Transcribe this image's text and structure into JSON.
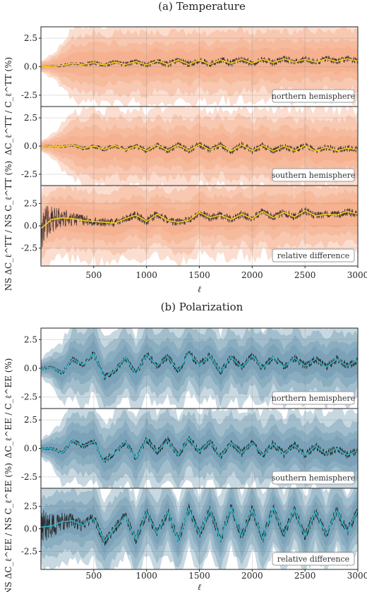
{
  "chart_data": [
    {
      "type": "line",
      "title": "(a) Temperature",
      "xlabel": "ℓ",
      "xlim": [
        0,
        3000
      ],
      "xticks": [
        "500",
        "1000",
        "1500",
        "2000",
        "2500",
        "3000"
      ],
      "colors": {
        "band": "#f4a079",
        "data": "#3a3030",
        "smooth": "#f2d21a"
      },
      "panels": [
        {
          "ylabel": "ΔC_ℓ^TT / C_ℓ^TT (%)",
          "ylim": [
            -3.5,
            3.5
          ],
          "yticks": [
            "2.5",
            "0.0",
            "-2.5"
          ],
          "legend": "northern hemisphere",
          "x": [
            0,
            100,
            200,
            300,
            400,
            500,
            600,
            700,
            800,
            900,
            1000,
            1100,
            1200,
            1300,
            1400,
            1500,
            1600,
            1700,
            1800,
            1900,
            2000,
            2100,
            2200,
            2300,
            2400,
            2500,
            2600,
            2700,
            2800,
            2900,
            3000
          ],
          "smooth": [
            0.0,
            0.05,
            0.1,
            0.3,
            0.2,
            0.35,
            0.15,
            0.4,
            0.2,
            0.45,
            0.15,
            0.5,
            0.2,
            0.6,
            0.2,
            0.6,
            0.2,
            0.6,
            0.3,
            0.65,
            0.3,
            0.65,
            0.35,
            0.7,
            0.4,
            0.65,
            0.4,
            0.7,
            0.45,
            0.7,
            0.5
          ],
          "band_halfwidth": [
            0.5,
            1.0,
            2.0,
            3.0,
            3.4,
            3.5,
            3.5,
            3.5,
            3.5,
            3.5,
            3.5,
            3.5,
            3.5,
            3.5,
            3.5,
            3.5,
            3.5,
            3.5,
            3.5,
            3.5,
            3.5,
            3.5,
            3.5,
            3.5,
            3.5,
            3.5,
            3.5,
            3.5,
            3.5,
            3.5,
            3.5
          ],
          "noise": [
            0.05,
            0.08,
            0.12,
            0.15,
            0.18,
            0.2,
            0.2,
            0.22,
            0.22,
            0.25,
            0.25,
            0.25,
            0.28,
            0.28,
            0.3,
            0.3,
            0.3,
            0.3,
            0.3,
            0.3,
            0.3,
            0.3,
            0.3,
            0.3,
            0.3,
            0.3,
            0.3,
            0.3,
            0.3,
            0.3,
            0.3
          ]
        },
        {
          "ylabel": "",
          "ylim": [
            -3.5,
            3.5
          ],
          "yticks": [
            "2.5",
            "0.0",
            "-2.5"
          ],
          "legend": "southern hemisphere",
          "x": [
            0,
            100,
            200,
            300,
            400,
            500,
            600,
            700,
            800,
            900,
            1000,
            1100,
            1200,
            1300,
            1400,
            1500,
            1600,
            1700,
            1800,
            1900,
            2000,
            2100,
            2200,
            2300,
            2400,
            2500,
            2600,
            2700,
            2800,
            2900,
            3000
          ],
          "smooth": [
            0.0,
            0.0,
            -0.05,
            0.1,
            -0.2,
            0.0,
            -0.3,
            0.05,
            -0.35,
            0.0,
            -0.4,
            0.1,
            -0.4,
            0.1,
            -0.4,
            0.15,
            -0.35,
            0.1,
            -0.45,
            0.1,
            -0.4,
            0.05,
            -0.45,
            0.0,
            -0.4,
            0.05,
            -0.45,
            -0.1,
            -0.4,
            -0.2,
            -0.3
          ],
          "band_halfwidth": [
            0.5,
            1.0,
            2.0,
            3.0,
            3.4,
            3.5,
            3.5,
            3.5,
            3.5,
            3.5,
            3.5,
            3.5,
            3.5,
            3.5,
            3.5,
            3.5,
            3.5,
            3.5,
            3.5,
            3.5,
            3.5,
            3.5,
            3.5,
            3.5,
            3.5,
            3.5,
            3.5,
            3.5,
            3.5,
            3.5,
            3.5
          ],
          "noise": [
            0.05,
            0.08,
            0.12,
            0.15,
            0.18,
            0.2,
            0.2,
            0.22,
            0.22,
            0.25,
            0.25,
            0.25,
            0.28,
            0.28,
            0.3,
            0.3,
            0.3,
            0.3,
            0.3,
            0.3,
            0.3,
            0.3,
            0.3,
            0.3,
            0.3,
            0.3,
            0.3,
            0.3,
            0.3,
            0.3,
            0.3
          ]
        },
        {
          "ylabel": "NS ΔC_ℓ^TT / NS C_ℓ^TT (%)",
          "ylim": [
            -4.5,
            4.5
          ],
          "yticks": [
            "2.5",
            "0.0",
            "-2.5"
          ],
          "legend": "relative difference",
          "x": [
            0,
            100,
            200,
            300,
            400,
            500,
            600,
            700,
            800,
            900,
            1000,
            1100,
            1200,
            1300,
            1400,
            1500,
            1600,
            1700,
            1800,
            1900,
            2000,
            2100,
            2200,
            2300,
            2400,
            2500,
            2600,
            2700,
            2800,
            2900,
            3000
          ],
          "smooth": [
            -0.3,
            0.7,
            0.9,
            0.8,
            0.6,
            0.5,
            0.4,
            0.3,
            0.8,
            1.2,
            0.5,
            1.3,
            0.6,
            0.4,
            0.6,
            1.5,
            0.9,
            1.2,
            0.7,
            1.3,
            0.8,
            1.6,
            0.9,
            1.5,
            1.0,
            1.7,
            1.1,
            1.3,
            1.2,
            1.6,
            1.3
          ],
          "band_halfwidth": [
            4.5,
            4.5,
            4.5,
            4.5,
            4.5,
            4.5,
            4.5,
            4.5,
            4.5,
            4.5,
            4.5,
            4.5,
            4.5,
            4.5,
            4.5,
            4.5,
            4.5,
            4.5,
            4.5,
            4.5,
            4.5,
            4.5,
            4.5,
            4.5,
            4.5,
            4.5,
            4.5,
            4.5,
            4.5,
            4.5,
            4.5
          ],
          "noise": [
            2.5,
            1.5,
            1.0,
            0.8,
            0.6,
            0.55,
            0.5,
            0.5,
            0.5,
            0.5,
            0.5,
            0.45,
            0.45,
            0.45,
            0.45,
            0.45,
            0.45,
            0.45,
            0.45,
            0.45,
            0.45,
            0.45,
            0.45,
            0.45,
            0.45,
            0.45,
            0.45,
            0.45,
            0.45,
            0.45,
            0.45
          ]
        }
      ]
    },
    {
      "type": "line",
      "title": "(b) Polarization",
      "xlabel": "ℓ",
      "xlim": [
        0,
        3000
      ],
      "xticks": [
        "500",
        "1000",
        "1500",
        "2000",
        "2500",
        "3000"
      ],
      "colors": {
        "band": "#5f8fa8",
        "data": "#2a2a2a",
        "smooth": "#2fb7c9"
      },
      "panels": [
        {
          "ylabel": "ΔC_ℓ^EE / C_ℓ^EE (%)",
          "ylim": [
            -3.5,
            3.5
          ],
          "yticks": [
            "2.5",
            "0.0",
            "-2.5"
          ],
          "legend": "northern hemisphere",
          "x": [
            0,
            100,
            200,
            300,
            400,
            500,
            600,
            700,
            800,
            900,
            1000,
            1100,
            1200,
            1300,
            1400,
            1500,
            1600,
            1700,
            1800,
            1900,
            2000,
            2100,
            2200,
            2300,
            2400,
            2500,
            2600,
            2700,
            2800,
            2900,
            3000
          ],
          "smooth": [
            0.0,
            0.1,
            -0.4,
            0.8,
            0.3,
            1.3,
            -0.8,
            -0.2,
            0.9,
            -0.5,
            1.2,
            0.2,
            1.0,
            -0.2,
            1.3,
            0.3,
            1.1,
            -0.3,
            1.0,
            0.1,
            1.1,
            0.0,
            1.0,
            0.1,
            0.9,
            0.2,
            0.8,
            0.1,
            0.8,
            0.2,
            0.7
          ],
          "band_halfwidth": [
            0.8,
            1.5,
            2.8,
            3.5,
            3.5,
            3.5,
            3.5,
            3.5,
            3.5,
            3.5,
            3.5,
            3.5,
            3.5,
            3.5,
            3.5,
            3.5,
            3.5,
            3.5,
            3.5,
            3.5,
            3.5,
            3.5,
            3.5,
            3.5,
            3.5,
            3.5,
            3.5,
            3.5,
            3.5,
            3.5,
            3.5
          ],
          "noise": [
            0.1,
            0.15,
            0.2,
            0.25,
            0.25,
            0.3,
            0.3,
            0.3,
            0.3,
            0.3,
            0.35,
            0.35,
            0.35,
            0.35,
            0.35,
            0.35,
            0.35,
            0.35,
            0.35,
            0.35,
            0.35,
            0.35,
            0.35,
            0.35,
            0.35,
            0.35,
            0.35,
            0.35,
            0.35,
            0.35,
            0.35
          ]
        },
        {
          "ylabel": "",
          "ylim": [
            -3.5,
            3.5
          ],
          "yticks": [
            "2.5",
            "0.0",
            "-2.5"
          ],
          "legend": "southern hemisphere",
          "x": [
            0,
            100,
            200,
            300,
            400,
            500,
            600,
            700,
            800,
            900,
            1000,
            1100,
            1200,
            1300,
            1400,
            1500,
            1600,
            1700,
            1800,
            1900,
            2000,
            2100,
            2200,
            2300,
            2400,
            2500,
            2600,
            2700,
            2800,
            2900,
            3000
          ],
          "smooth": [
            0.0,
            0.0,
            -0.4,
            0.7,
            0.2,
            0.6,
            -1.1,
            -0.4,
            0.6,
            -0.9,
            0.8,
            -0.3,
            0.7,
            -0.6,
            0.9,
            -0.3,
            0.6,
            -0.7,
            0.5,
            -0.4,
            0.5,
            -0.6,
            0.4,
            -0.5,
            0.3,
            -0.6,
            0.2,
            -0.5,
            0.0,
            -0.6,
            -0.2
          ],
          "band_halfwidth": [
            0.8,
            1.5,
            2.8,
            3.5,
            3.5,
            3.5,
            3.5,
            3.5,
            3.5,
            3.5,
            3.5,
            3.5,
            3.5,
            3.5,
            3.5,
            3.5,
            3.5,
            3.5,
            3.5,
            3.5,
            3.5,
            3.5,
            3.5,
            3.5,
            3.5,
            3.5,
            3.5,
            3.5,
            3.5,
            3.5,
            3.5
          ],
          "noise": [
            0.1,
            0.15,
            0.2,
            0.25,
            0.25,
            0.3,
            0.3,
            0.3,
            0.3,
            0.3,
            0.35,
            0.35,
            0.35,
            0.35,
            0.35,
            0.35,
            0.35,
            0.35,
            0.35,
            0.35,
            0.35,
            0.35,
            0.35,
            0.35,
            0.35,
            0.35,
            0.35,
            0.35,
            0.35,
            0.35,
            0.35
          ]
        },
        {
          "ylabel": "NS ΔC_ℓ^EE / NS C_ℓ^EE (%)",
          "ylim": [
            -4.5,
            4.5
          ],
          "yticks": [
            "2.5",
            "0.0",
            "-2.5"
          ],
          "legend": "relative difference",
          "x": [
            0,
            100,
            200,
            300,
            400,
            500,
            600,
            700,
            800,
            900,
            1000,
            1100,
            1200,
            1300,
            1400,
            1500,
            1600,
            1700,
            1800,
            1900,
            2000,
            2100,
            2200,
            2300,
            2400,
            2500,
            2600,
            2700,
            2800,
            2900,
            3000
          ],
          "smooth": [
            0.2,
            0.3,
            0.8,
            0.9,
            0.4,
            1.2,
            -1.4,
            0.1,
            1.4,
            -1.2,
            1.8,
            -0.5,
            1.9,
            -1.3,
            2.2,
            -0.6,
            2.1,
            -1.2,
            2.4,
            -0.8,
            2.2,
            -1.1,
            2.3,
            -0.6,
            2.2,
            -0.8,
            1.9,
            -0.6,
            2.0,
            -0.3,
            2.1
          ],
          "band_halfwidth": [
            4.5,
            4.5,
            4.5,
            4.5,
            4.5,
            4.5,
            4.5,
            4.5,
            4.5,
            4.5,
            4.5,
            4.5,
            4.5,
            4.5,
            4.5,
            4.5,
            4.5,
            4.5,
            4.5,
            4.5,
            4.5,
            4.5,
            4.5,
            4.5,
            4.5,
            4.5,
            4.5,
            4.5,
            4.5,
            4.5,
            4.5
          ],
          "noise": [
            2.2,
            1.4,
            1.0,
            0.8,
            0.7,
            0.65,
            0.6,
            0.6,
            0.6,
            0.6,
            0.6,
            0.6,
            0.6,
            0.6,
            0.6,
            0.6,
            0.6,
            0.6,
            0.6,
            0.6,
            0.6,
            0.6,
            0.6,
            0.6,
            0.6,
            0.6,
            0.6,
            0.6,
            0.6,
            0.6,
            0.6
          ]
        }
      ]
    }
  ]
}
